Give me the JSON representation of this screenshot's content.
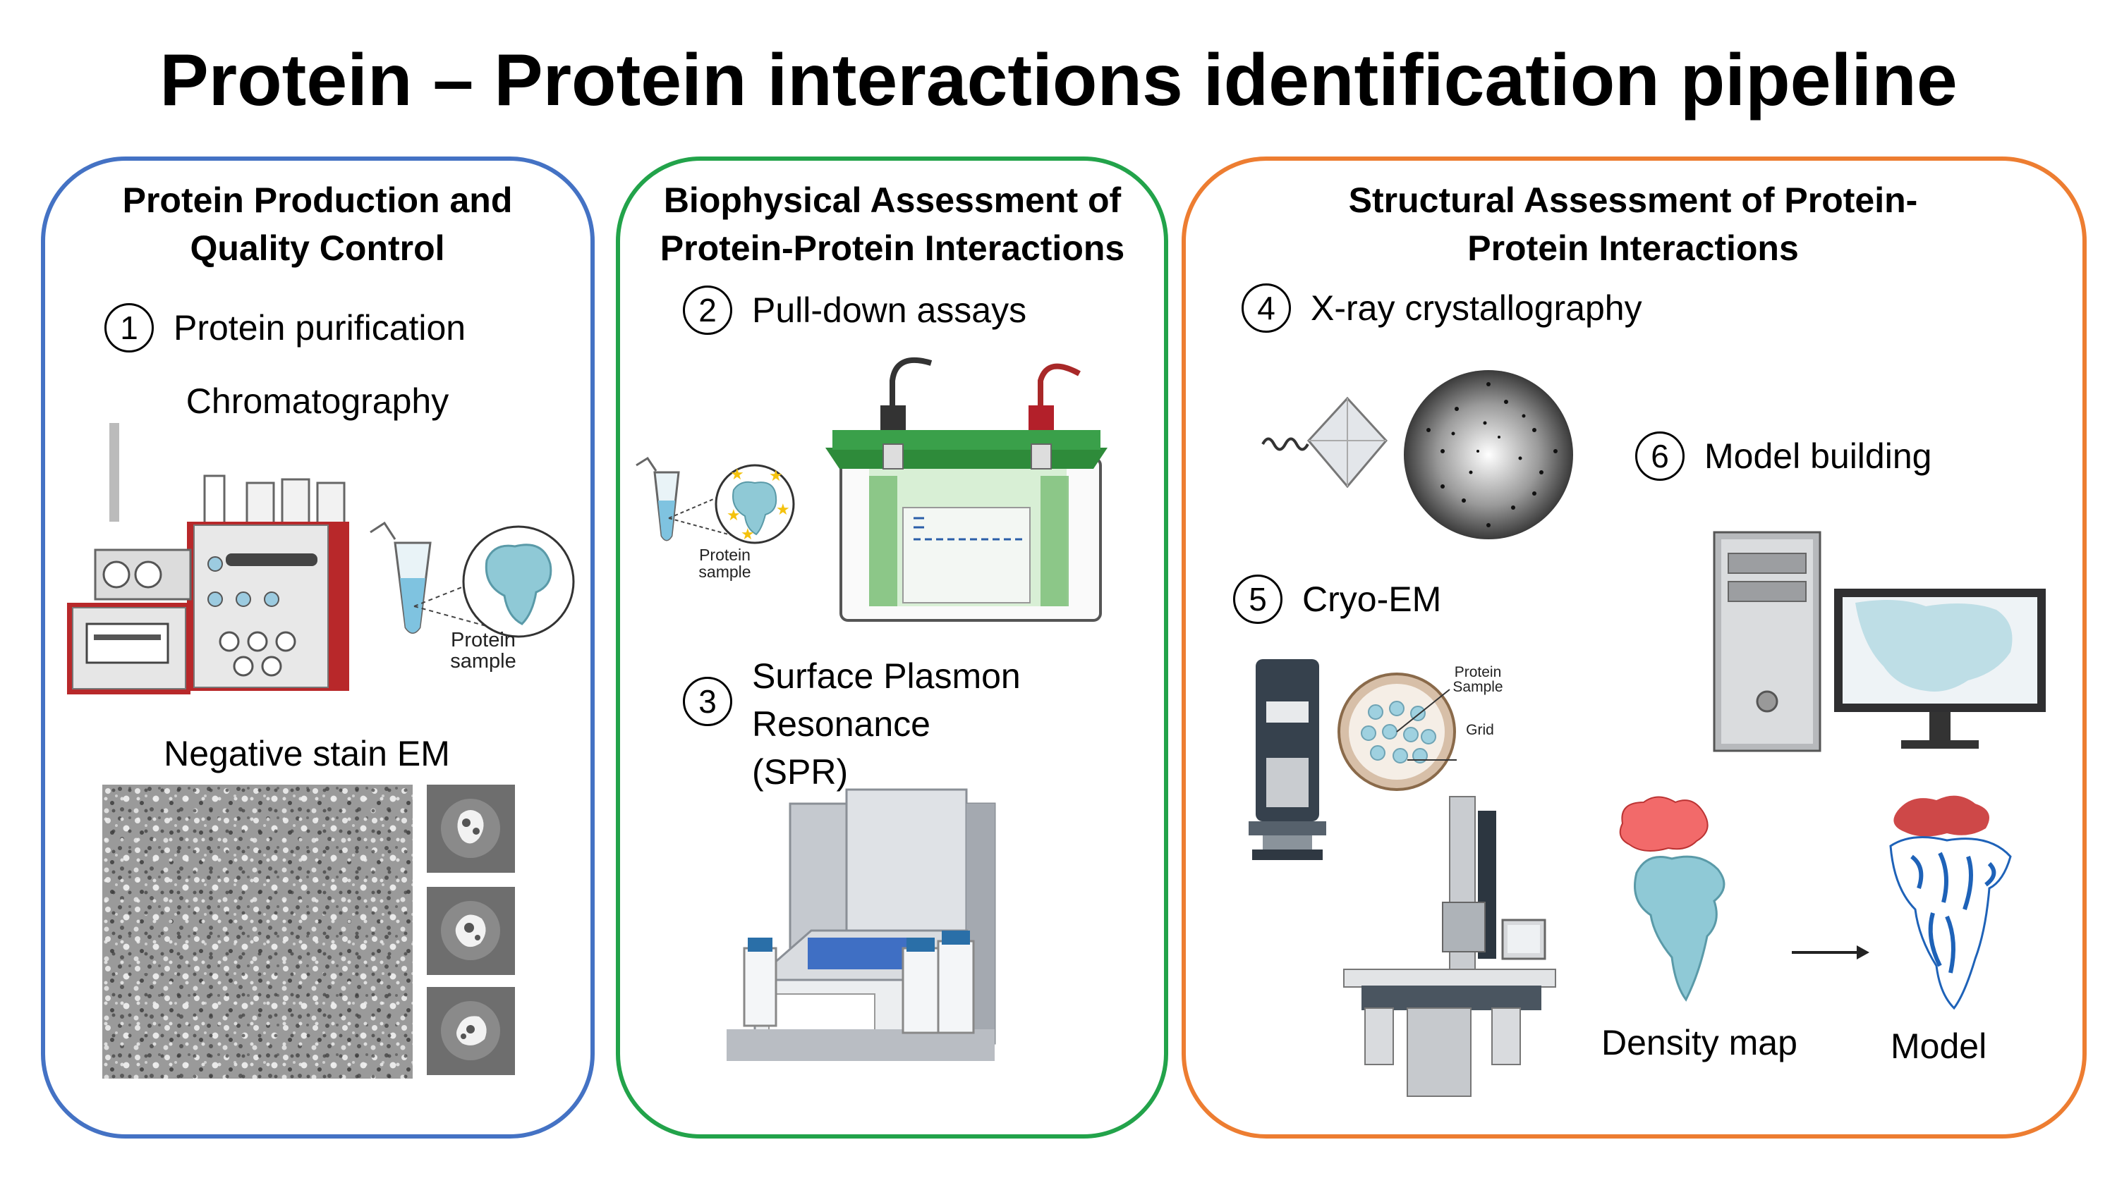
{
  "title": "Protein – Protein interactions identification pipeline",
  "colors": {
    "panel1": "#4472C4",
    "panel2": "#22A34A",
    "panel3": "#ED7D31",
    "protein": "#8fc9d6",
    "model_red": "#c62828",
    "model_blue": "#1e62b8"
  },
  "panels": [
    {
      "title": "Protein Production and Quality Control",
      "steps": [
        {
          "number": "1",
          "label": "Protein purification"
        }
      ],
      "labels": {
        "chromatography": "Chromatography",
        "protein_sample": "Protein sample",
        "negative_stain": "Negative stain EM"
      }
    },
    {
      "title": "Biophysical Assessment of Protein-Protein Interactions",
      "steps": [
        {
          "number": "2",
          "label": "Pull-down assays"
        },
        {
          "number": "3",
          "label": "Surface Plasmon Resonance (SPR)"
        }
      ],
      "labels": {
        "protein_sample": "Protein sample"
      }
    },
    {
      "title": "Structural Assessment of Protein-Protein Interactions",
      "steps": [
        {
          "number": "4",
          "label": "X-ray crystallography"
        },
        {
          "number": "5",
          "label": "Cryo-EM"
        },
        {
          "number": "6",
          "label": "Model building"
        }
      ],
      "labels": {
        "protein_sample": "Protein Sample",
        "grid": "Grid",
        "density_map": "Density map",
        "model": "Model"
      }
    }
  ]
}
